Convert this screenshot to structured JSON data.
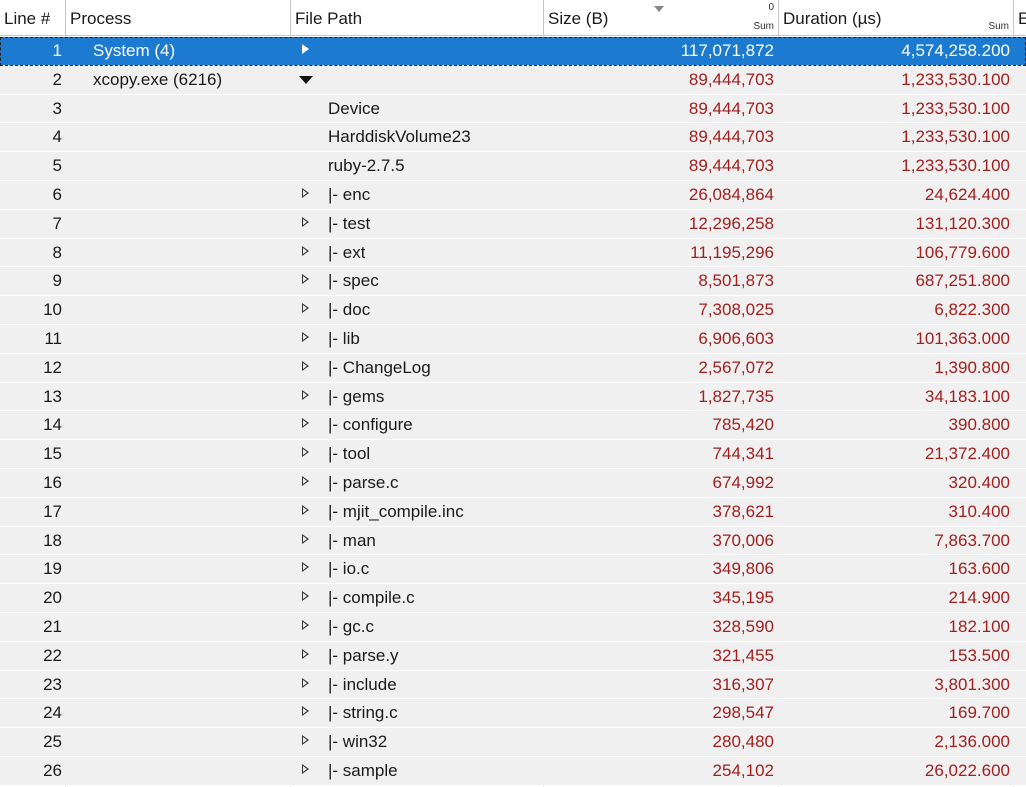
{
  "table": {
    "columns": [
      {
        "title": "Line #"
      },
      {
        "title": "Process"
      },
      {
        "title": "File Path"
      },
      {
        "title": "Size (B)",
        "sort_index": "0",
        "aggregation": "Sum"
      },
      {
        "title": "Duration (µs)",
        "aggregation": "Sum"
      },
      {
        "title": "E"
      }
    ],
    "rows": [
      {
        "line": 1,
        "process": "System (4)",
        "expander": "collapsed",
        "size": "117,071,872",
        "duration": "4,574,258.200",
        "selected": true
      },
      {
        "line": 2,
        "process": "xcopy.exe (6216)",
        "expander": "expanded",
        "size": "89,444,703",
        "duration": "1,233,530.100"
      },
      {
        "line": 3,
        "file_path": "Device",
        "size": "89,444,703",
        "duration": "1,233,530.100"
      },
      {
        "line": 4,
        "file_path": "HarddiskVolume23",
        "size": "89,444,703",
        "duration": "1,233,530.100"
      },
      {
        "line": 5,
        "file_path": "ruby-2.7.5",
        "size": "89,444,703",
        "duration": "1,233,530.100"
      },
      {
        "line": 6,
        "file_path": "|- enc",
        "expander": "collapsed",
        "size": "26,084,864",
        "duration": "24,624.400"
      },
      {
        "line": 7,
        "file_path": "|- test",
        "expander": "collapsed",
        "size": "12,296,258",
        "duration": "131,120.300"
      },
      {
        "line": 8,
        "file_path": "|- ext",
        "expander": "collapsed",
        "size": "11,195,296",
        "duration": "106,779.600"
      },
      {
        "line": 9,
        "file_path": "|- spec",
        "expander": "collapsed",
        "size": "8,501,873",
        "duration": "687,251.800"
      },
      {
        "line": 10,
        "file_path": "|- doc",
        "expander": "collapsed",
        "size": "7,308,025",
        "duration": "6,822.300"
      },
      {
        "line": 11,
        "file_path": "|- lib",
        "expander": "collapsed",
        "size": "6,906,603",
        "duration": "101,363.000"
      },
      {
        "line": 12,
        "file_path": "|- ChangeLog",
        "expander": "collapsed",
        "size": "2,567,072",
        "duration": "1,390.800"
      },
      {
        "line": 13,
        "file_path": "|- gems",
        "expander": "collapsed",
        "size": "1,827,735",
        "duration": "34,183.100"
      },
      {
        "line": 14,
        "file_path": "|- configure",
        "expander": "collapsed",
        "size": "785,420",
        "duration": "390.800"
      },
      {
        "line": 15,
        "file_path": "|- tool",
        "expander": "collapsed",
        "size": "744,341",
        "duration": "21,372.400"
      },
      {
        "line": 16,
        "file_path": "|- parse.c",
        "expander": "collapsed",
        "size": "674,992",
        "duration": "320.400"
      },
      {
        "line": 17,
        "file_path": "|- mjit_compile.inc",
        "expander": "collapsed",
        "size": "378,621",
        "duration": "310.400"
      },
      {
        "line": 18,
        "file_path": "|- man",
        "expander": "collapsed",
        "size": "370,006",
        "duration": "7,863.700"
      },
      {
        "line": 19,
        "file_path": "|- io.c",
        "expander": "collapsed",
        "size": "349,806",
        "duration": "163.600"
      },
      {
        "line": 20,
        "file_path": "|- compile.c",
        "expander": "collapsed",
        "size": "345,195",
        "duration": "214.900"
      },
      {
        "line": 21,
        "file_path": "|- gc.c",
        "expander": "collapsed",
        "size": "328,590",
        "duration": "182.100"
      },
      {
        "line": 22,
        "file_path": "|- parse.y",
        "expander": "collapsed",
        "size": "321,455",
        "duration": "153.500"
      },
      {
        "line": 23,
        "file_path": "|- include",
        "expander": "collapsed",
        "size": "316,307",
        "duration": "3,801.300"
      },
      {
        "line": 24,
        "file_path": "|- string.c",
        "expander": "collapsed",
        "size": "298,547",
        "duration": "169.700"
      },
      {
        "line": 25,
        "file_path": "|- win32",
        "expander": "collapsed",
        "size": "280,480",
        "duration": "2,136.000"
      },
      {
        "line": 26,
        "file_path": "|- sample",
        "expander": "collapsed",
        "size": "254,102",
        "duration": "26,022.600"
      }
    ]
  }
}
